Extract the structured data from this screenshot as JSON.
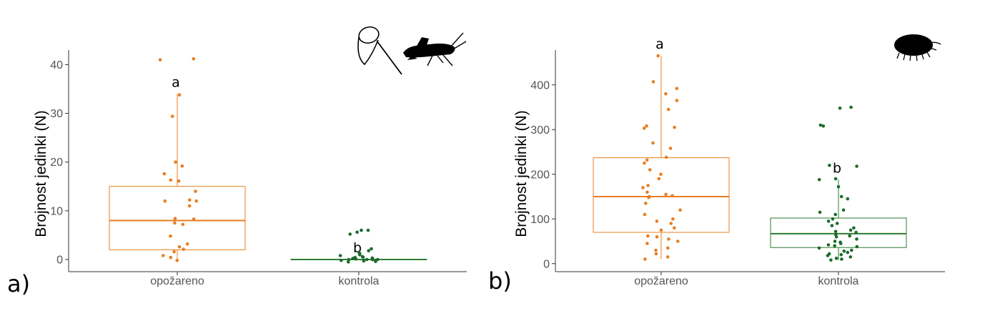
{
  "colors": {
    "burned": "#e87e22",
    "control": "#2e7d32",
    "control_points": "#1a6b2a",
    "axis": "#333333"
  },
  "chart_data": [
    {
      "type": "box",
      "panel_label": "a)",
      "ylabel": "Brojnost jedinki (N)",
      "categories": [
        "opožareno",
        "kontrola"
      ],
      "yticks": [
        0,
        10,
        20,
        30,
        40
      ],
      "ylim": [
        -2.5,
        43
      ],
      "icon": "net-and-grasshopper-icon",
      "boxes": [
        {
          "q1": 2,
          "median": 8,
          "q3": 15,
          "whisker_low": 0,
          "whisker_high": 34,
          "sig": "a"
        },
        {
          "q1": 0,
          "median": 0,
          "q3": 0,
          "whisker_low": 0,
          "whisker_high": 0,
          "sig": "b"
        }
      ],
      "points": [
        [
          41.2,
          41,
          33.8,
          29.4,
          20,
          19.2,
          17.6,
          16.3,
          16.1,
          14,
          12.2,
          12,
          12,
          11,
          8.4,
          8.3,
          7.5,
          7.2,
          4.8,
          3.2,
          2.6,
          2.1,
          1.6,
          0.8,
          0.4,
          -0.2
        ],
        [
          6,
          6,
          5.6,
          5.2,
          2.2,
          1.8,
          1.5,
          1.2,
          1,
          0.8,
          0.6,
          0.5,
          0.4,
          0.3,
          0.2,
          0.1,
          0,
          0,
          0,
          0,
          0,
          -0.2,
          -0.3,
          -0.4,
          -0.5
        ]
      ]
    },
    {
      "type": "box",
      "panel_label": "b)",
      "ylabel": "Brojnost jedinki (N)",
      "categories": [
        "opožareno",
        "kontrola"
      ],
      "yticks": [
        0,
        100,
        200,
        300,
        400
      ],
      "ylim": [
        -18,
        478
      ],
      "icon": "pill-bug-icon",
      "boxes": [
        {
          "q1": 70,
          "median": 150,
          "q3": 237,
          "whisker_low": 10,
          "whisker_high": 465,
          "sig": "a"
        },
        {
          "q1": 36,
          "median": 67,
          "q3": 102,
          "whisker_low": 8,
          "whisker_high": 188,
          "sig": "b"
        }
      ],
      "points": [
        [
          465,
          407,
          392,
          380,
          365,
          345,
          308,
          305,
          303,
          270,
          258,
          238,
          232,
          225,
          210,
          200,
          190,
          175,
          170,
          160,
          155,
          152,
          150,
          148,
          135,
          120,
          110,
          100,
          95,
          90,
          80,
          75,
          62,
          60,
          55,
          50,
          45,
          35,
          30,
          22,
          15,
          10
        ],
        [
          350,
          348,
          310,
          308,
          220,
          218,
          190,
          188,
          172,
          150,
          145,
          120,
          115,
          110,
          100,
          95,
          90,
          85,
          80,
          75,
          72,
          70,
          65,
          62,
          60,
          55,
          50,
          48,
          45,
          42,
          40,
          38,
          35,
          30,
          28,
          25,
          22,
          20,
          18,
          15,
          12,
          10,
          8
        ]
      ]
    }
  ]
}
